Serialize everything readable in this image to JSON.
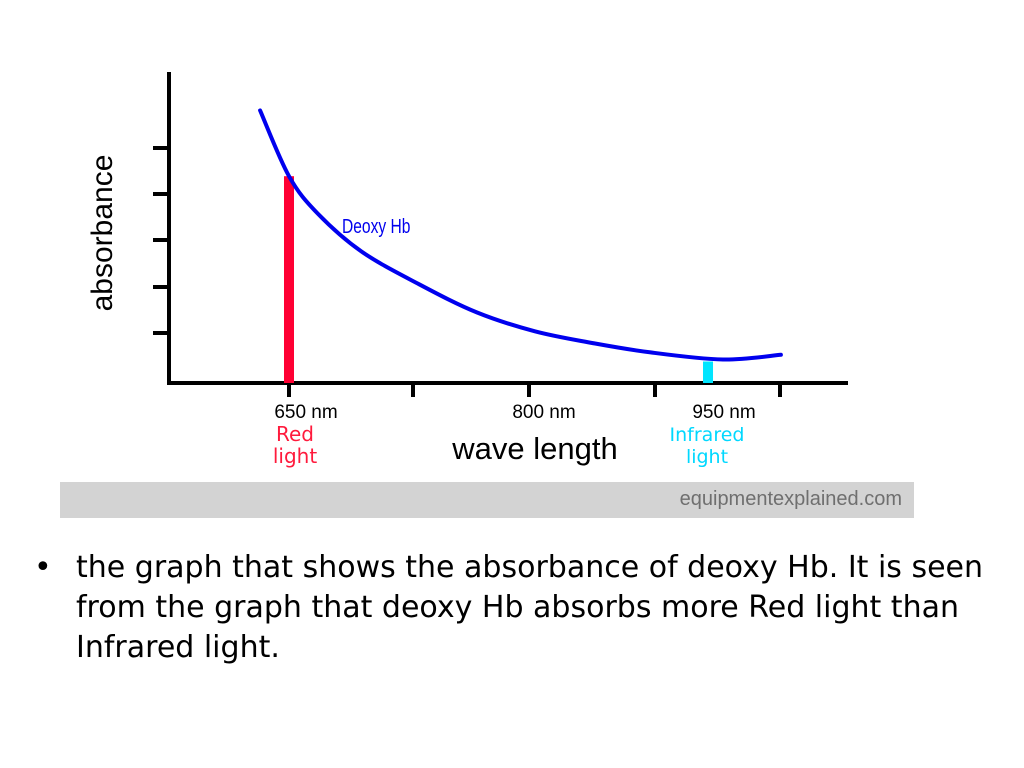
{
  "chart_data": {
    "type": "line",
    "ylabel": "absorbance",
    "xlabel": "wave length",
    "x_ticks": [
      "650 nm",
      "800 nm",
      "950 nm"
    ],
    "xlim": [
      600,
      1000
    ],
    "y_scale": "relative, unlabeled",
    "series": [
      {
        "name": "Deoxy Hb",
        "color": "#0000ee",
        "x": [
          630,
          650,
          670,
          700,
          740,
          780,
          820,
          860,
          900,
          950,
          990
        ],
        "y": [
          5.8,
          4.4,
          3.6,
          2.8,
          2.1,
          1.5,
          1.1,
          0.85,
          0.65,
          0.5,
          0.6
        ]
      }
    ],
    "markers": [
      {
        "x": 650,
        "label": "Red light",
        "color": "#ff0033"
      },
      {
        "x": 950,
        "label": "Infrared light",
        "color": "#00e5ff"
      }
    ],
    "grid": false,
    "legend": "none"
  },
  "labels": {
    "ylabel": "absorbance",
    "xlabel": "wave length",
    "tick_650": "650 nm",
    "tick_800": "800 nm",
    "tick_950": "950 nm",
    "series_label": "Deoxy Hb",
    "red_line1": "Red",
    "red_line2": "light",
    "ir_line1": "Infrared",
    "ir_line2": "light"
  },
  "watermark": "equipmentexplained.com",
  "bullet": {
    "text": "the graph that shows the absorbance of deoxy Hb. It is seen from the graph that deoxy Hb absorbs more Red light than Infrared light."
  },
  "colors": {
    "curve": "#0000ee",
    "red_marker": "#ff0033",
    "ir_marker": "#00e5ff",
    "red_label": "#ff1a3c",
    "ir_label": "#00d8ff",
    "axis": "#000000"
  }
}
